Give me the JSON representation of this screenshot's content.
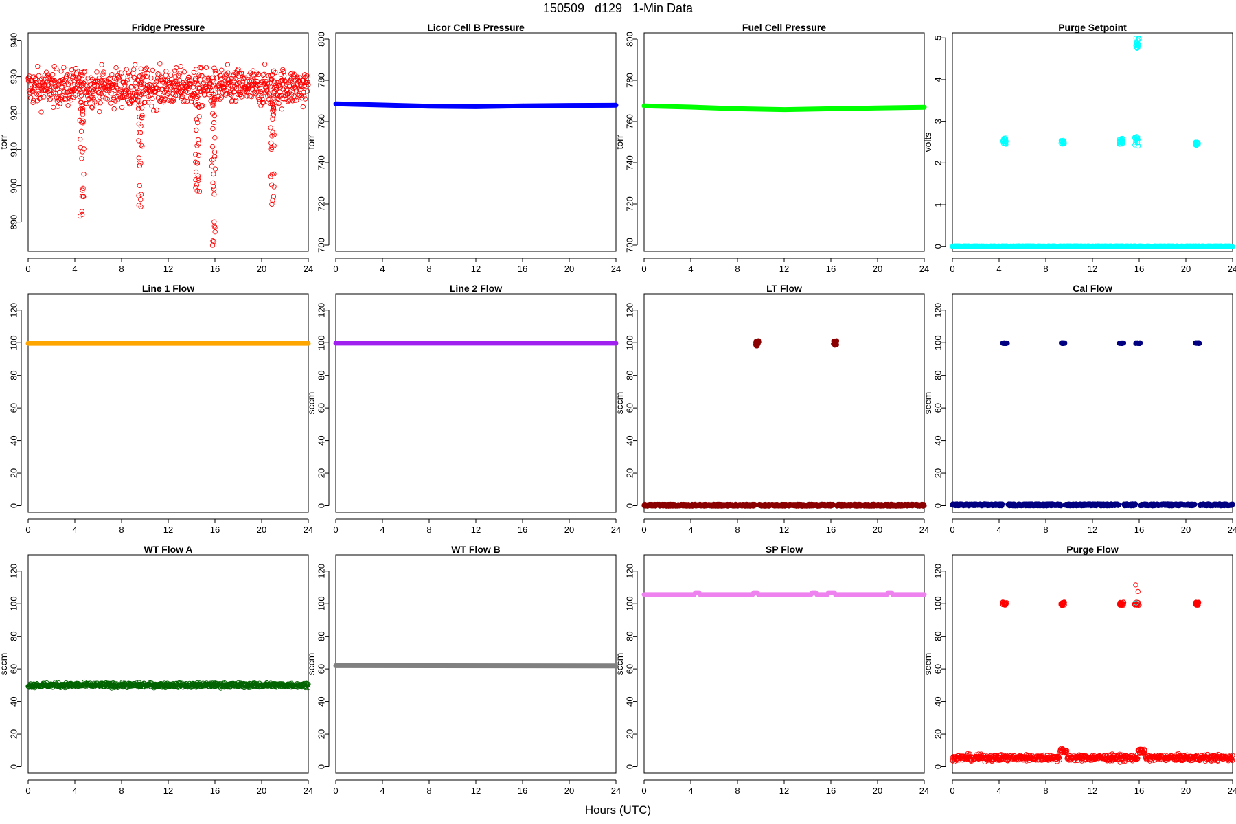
{
  "header": {
    "title": "150509   d129   1-Min Data"
  },
  "footer": {
    "xlabel": "Hours (UTC)"
  },
  "chart_data": [
    {
      "title": "Fridge Pressure",
      "ylabel": "torr",
      "type": "scatter",
      "color": "#ff0000",
      "marker": "open",
      "xlim": [
        0,
        24
      ],
      "ylim": [
        882,
        942
      ],
      "xticks": [
        0,
        4,
        8,
        12,
        16,
        20,
        24
      ],
      "yticks": [
        890,
        900,
        910,
        920,
        930,
        940
      ],
      "baseline": {
        "center": 927,
        "noise": 6
      },
      "dips": [
        {
          "x": 4.6,
          "y": 891.5
        },
        {
          "x": 9.6,
          "y": 893
        },
        {
          "x": 14.5,
          "y": 895
        },
        {
          "x": 15.9,
          "y": 883.5
        },
        {
          "x": 20.9,
          "y": 893
        }
      ]
    },
    {
      "title": "Licor Cell B Pressure",
      "ylabel": "torr",
      "type": "line",
      "color": "#0000ff",
      "marker": "filled",
      "xlim": [
        0,
        24
      ],
      "ylim": [
        697,
        803
      ],
      "xticks": [
        0,
        4,
        8,
        12,
        16,
        20,
        24
      ],
      "yticks": [
        700,
        720,
        740,
        760,
        780,
        800
      ],
      "series": [
        {
          "x": [
            0,
            4,
            8,
            12,
            16,
            20,
            24
          ],
          "y": [
            768.6,
            768,
            767.4,
            767.2,
            767.6,
            767.8,
            767.9
          ]
        }
      ]
    },
    {
      "title": "Fuel Cell Pressure",
      "ylabel": "torr",
      "type": "line",
      "color": "#00ff00",
      "marker": "filled",
      "xlim": [
        0,
        24
      ],
      "ylim": [
        697,
        803
      ],
      "xticks": [
        0,
        4,
        8,
        12,
        16,
        20,
        24
      ],
      "yticks": [
        700,
        720,
        740,
        760,
        780,
        800
      ],
      "series": [
        {
          "x": [
            0,
            4,
            8,
            12,
            16,
            20,
            24
          ],
          "y": [
            767.6,
            767,
            766.2,
            765.8,
            766.2,
            766.6,
            766.9
          ]
        }
      ]
    },
    {
      "title": "Purge Setpoint",
      "ylabel": "volts",
      "type": "scatter",
      "color": "#00ffff",
      "marker": "open",
      "xlim": [
        0,
        24
      ],
      "ylim": [
        -0.12,
        5.12
      ],
      "xticks": [
        0,
        4,
        8,
        12,
        16,
        20,
        24
      ],
      "yticks": [
        0,
        1,
        2,
        3,
        4,
        5
      ],
      "baseline": {
        "value": 0
      },
      "clusters": [
        {
          "x": [
            4.3,
            4.6
          ],
          "y": [
            2.45,
            2.6
          ]
        },
        {
          "x": [
            9.3,
            9.6
          ],
          "y": [
            2.45,
            2.55
          ]
        },
        {
          "x": [
            14.3,
            14.6
          ],
          "y": [
            2.45,
            2.6
          ]
        },
        {
          "x": [
            15.6,
            16.0
          ],
          "y": [
            2.4,
            2.65
          ]
        },
        {
          "x": [
            20.8,
            21.1
          ],
          "y": [
            2.42,
            2.5
          ]
        },
        {
          "x": [
            15.7,
            16.0
          ],
          "y": [
            4.75,
            5.0
          ]
        }
      ]
    },
    {
      "title": "Line 1 Flow",
      "ylabel": "",
      "type": "line",
      "color": "#ffa500",
      "marker": "filled",
      "xlim": [
        0,
        24
      ],
      "ylim": [
        -4,
        130
      ],
      "xticks": [
        0,
        4,
        8,
        12,
        16,
        20,
        24
      ],
      "yticks": [
        0,
        20,
        40,
        60,
        80,
        100,
        120
      ],
      "series": [
        {
          "x": [
            0,
            24
          ],
          "y": [
            99.6,
            99.6
          ]
        }
      ]
    },
    {
      "title": "Line 2 Flow",
      "ylabel": "sccm",
      "type": "line",
      "color": "#a020f0",
      "marker": "filled",
      "xlim": [
        0,
        24
      ],
      "ylim": [
        -4,
        130
      ],
      "xticks": [
        0,
        4,
        8,
        12,
        16,
        20,
        24
      ],
      "yticks": [
        0,
        20,
        40,
        60,
        80,
        100,
        120
      ],
      "series": [
        {
          "x": [
            0,
            24
          ],
          "y": [
            99.7,
            99.7
          ]
        }
      ]
    },
    {
      "title": "LT Flow",
      "ylabel": "sccm",
      "type": "scatter",
      "color": "#8b0000",
      "marker": "filled",
      "xlim": [
        0,
        24
      ],
      "ylim": [
        -4,
        130
      ],
      "xticks": [
        0,
        4,
        8,
        12,
        16,
        20,
        24
      ],
      "yticks": [
        0,
        20,
        40,
        60,
        80,
        100,
        120
      ],
      "baseline": {
        "value": 0.3,
        "gaps": [
          [
            9.55,
            9.85
          ],
          [
            16.2,
            16.5
          ]
        ]
      },
      "clusters": [
        {
          "x": [
            9.55,
            9.85
          ],
          "y": [
            98,
            101.5
          ]
        },
        {
          "x": [
            16.2,
            16.5
          ],
          "y": [
            98,
            101.5
          ]
        }
      ]
    },
    {
      "title": "Cal Flow",
      "ylabel": "sccm",
      "type": "scatter",
      "color": "#000080",
      "marker": "filled",
      "xlim": [
        0,
        24
      ],
      "ylim": [
        -4,
        130
      ],
      "xticks": [
        0,
        4,
        8,
        12,
        16,
        20,
        24
      ],
      "yticks": [
        0,
        20,
        40,
        60,
        80,
        100,
        120
      ],
      "baseline": {
        "value": 0.5,
        "gaps": [
          [
            4.3,
            4.75
          ],
          [
            9.3,
            9.65
          ],
          [
            14.3,
            14.7
          ],
          [
            15.7,
            16.1
          ],
          [
            20.8,
            21.2
          ]
        ]
      },
      "clusters": [
        {
          "x": [
            4.3,
            4.75
          ],
          "y": [
            99.5,
            100
          ]
        },
        {
          "x": [
            9.3,
            9.65
          ],
          "y": [
            99.5,
            100
          ]
        },
        {
          "x": [
            14.3,
            14.7
          ],
          "y": [
            99.5,
            100
          ]
        },
        {
          "x": [
            15.7,
            16.1
          ],
          "y": [
            99.5,
            100
          ]
        },
        {
          "x": [
            20.8,
            21.2
          ],
          "y": [
            99.5,
            100
          ]
        }
      ]
    },
    {
      "title": "WT Flow A",
      "ylabel": "sccm",
      "type": "scatter",
      "color": "#006400",
      "marker": "open",
      "xlim": [
        0,
        24
      ],
      "ylim": [
        -4,
        130
      ],
      "xticks": [
        0,
        4,
        8,
        12,
        16,
        20,
        24
      ],
      "yticks": [
        0,
        20,
        40,
        60,
        80,
        100,
        120
      ],
      "baseline": {
        "center": 50,
        "noise": 1.6
      }
    },
    {
      "title": "WT Flow B",
      "ylabel": "sccm",
      "type": "line",
      "color": "#808080",
      "marker": "filled",
      "xlim": [
        0,
        24
      ],
      "ylim": [
        -4,
        130
      ],
      "xticks": [
        0,
        4,
        8,
        12,
        16,
        20,
        24
      ],
      "yticks": [
        0,
        20,
        40,
        60,
        80,
        100,
        120
      ],
      "series": [
        {
          "x": [
            0,
            24
          ],
          "y": [
            62,
            61.8
          ]
        }
      ]
    },
    {
      "title": "SP Flow",
      "ylabel": "sccm",
      "type": "line",
      "color": "#ee82ee",
      "marker": "filled",
      "xlim": [
        0,
        24
      ],
      "ylim": [
        -4,
        130
      ],
      "xticks": [
        0,
        4,
        8,
        12,
        16,
        20,
        24
      ],
      "yticks": [
        0,
        20,
        40,
        60,
        80,
        100,
        120
      ],
      "series": [
        {
          "x": [
            0,
            4.3,
            4.4,
            4.7,
            4.8,
            9.3,
            9.4,
            9.7,
            9.8,
            14.3,
            14.4,
            14.7,
            14.8,
            15.7,
            15.8,
            16.3,
            16.4,
            20.8,
            20.9,
            21.2,
            21.3,
            24
          ],
          "y": [
            105.6,
            105.6,
            106.8,
            106.8,
            105.6,
            105.6,
            106.8,
            106.8,
            105.6,
            105.6,
            106.8,
            106.8,
            105.6,
            105.6,
            106.8,
            106.8,
            105.6,
            105.6,
            106.8,
            106.8,
            105.6,
            105.6
          ]
        }
      ]
    },
    {
      "title": "Purge Flow",
      "ylabel": "sccm",
      "type": "scatter",
      "color": "#ff0000",
      "marker": "open",
      "xlim": [
        0,
        24
      ],
      "ylim": [
        -4,
        130
      ],
      "xticks": [
        0,
        4,
        8,
        12,
        16,
        20,
        24
      ],
      "yticks": [
        0,
        20,
        40,
        60,
        80,
        100,
        120
      ],
      "baseline": {
        "center": 5.5,
        "noise": 2.2
      },
      "bumps": [
        {
          "x": 9.5,
          "y": 11
        },
        {
          "x": 16.2,
          "y": 11
        }
      ],
      "clusters": [
        {
          "x": [
            4.3,
            4.7
          ],
          "y": [
            99,
            101
          ]
        },
        {
          "x": [
            9.3,
            9.6
          ],
          "y": [
            99,
            101
          ]
        },
        {
          "x": [
            14.3,
            14.7
          ],
          "y": [
            99,
            101
          ]
        },
        {
          "x": [
            15.6,
            16.0
          ],
          "y": [
            99,
            101
          ]
        },
        {
          "x": [
            20.8,
            21.1
          ],
          "y": [
            99,
            101
          ]
        }
      ],
      "outliers": [
        {
          "x": 15.7,
          "y": 111.5,
          "color": "#ff0000"
        },
        {
          "x": 15.9,
          "y": 107.5,
          "color": "#ff0000"
        },
        {
          "x": 15.75,
          "y": 100.5,
          "color": "#00ffff"
        }
      ]
    }
  ]
}
